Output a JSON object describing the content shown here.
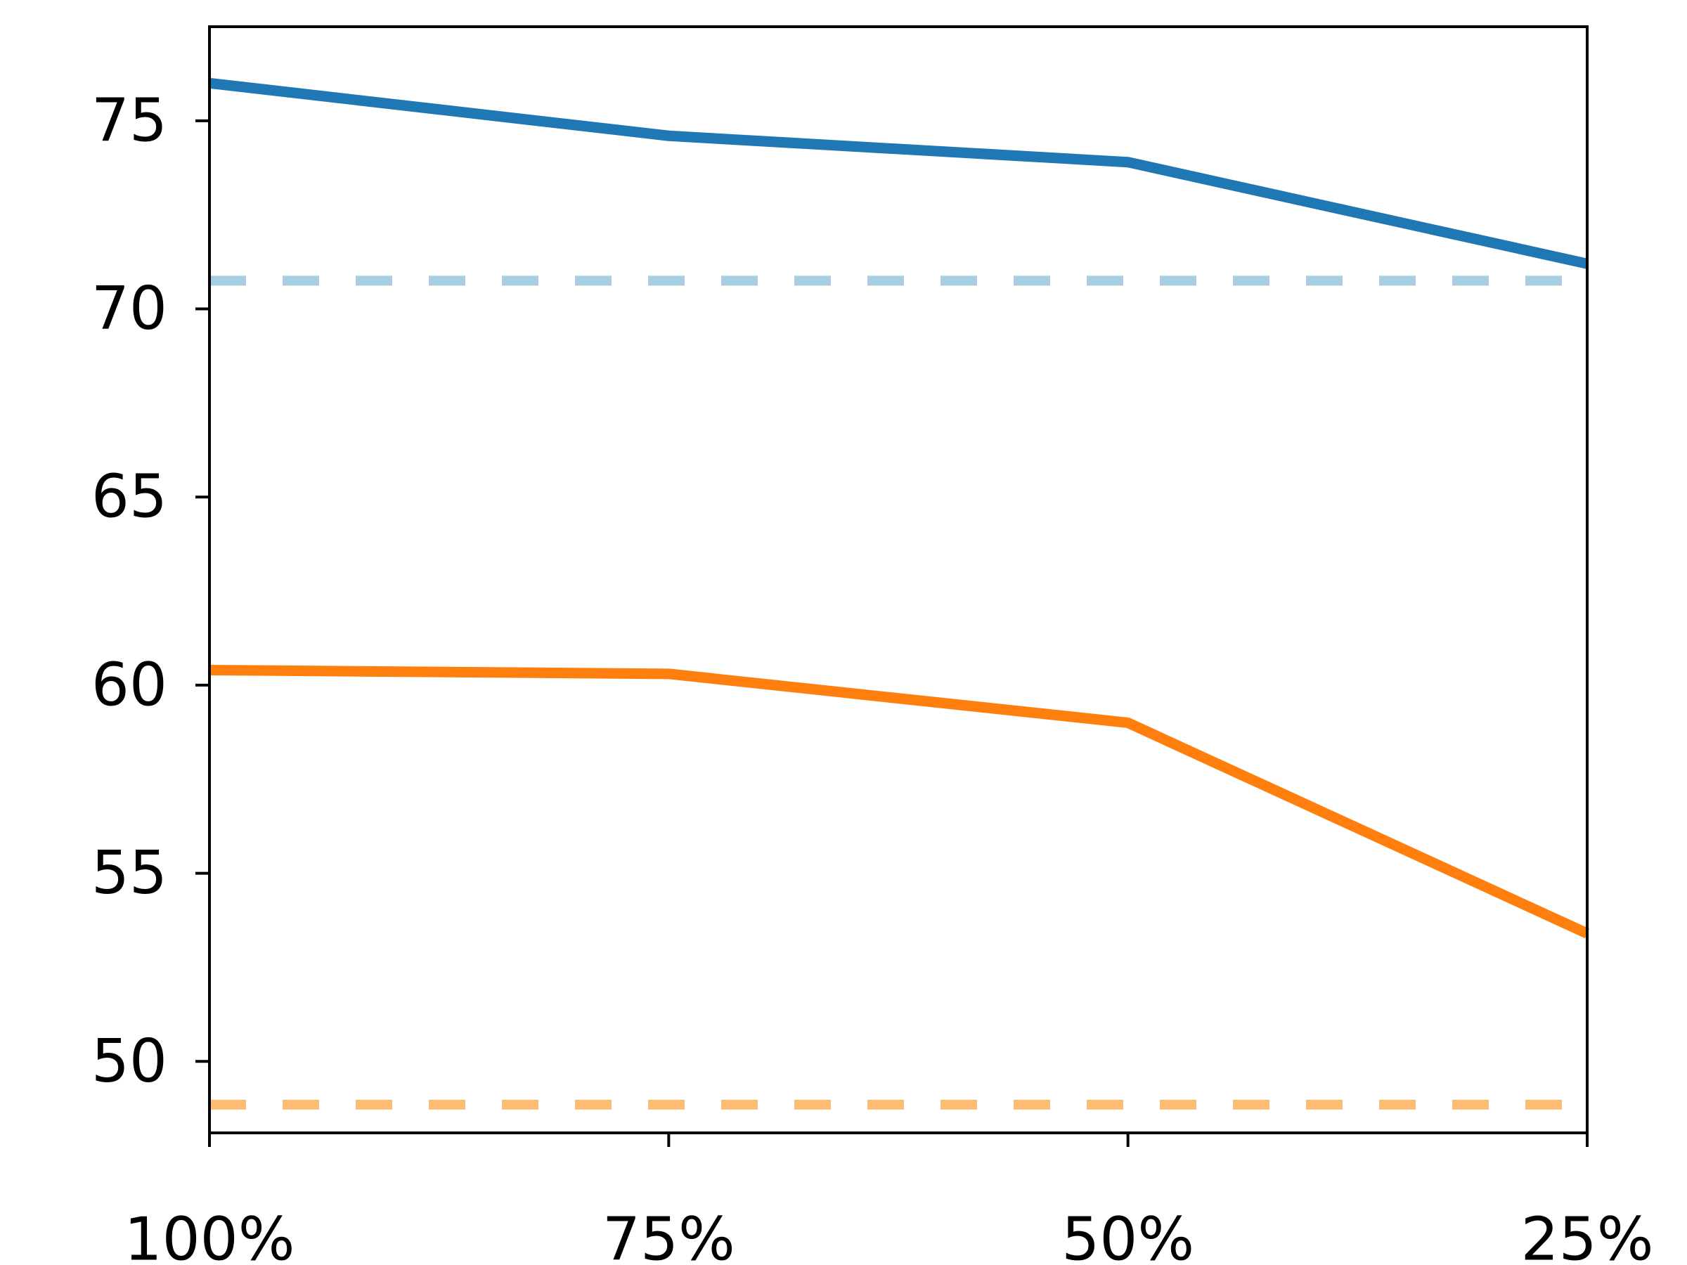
{
  "chart_data": {
    "type": "line",
    "title": "",
    "xlabel": "",
    "ylabel": "",
    "grid": false,
    "legend": null,
    "categories": [
      "100%",
      "75%",
      "50%",
      "25%"
    ],
    "series": [
      {
        "name": "blue-solid-series",
        "color": "#1f77b4",
        "line_style": "solid",
        "values": [
          76.0,
          74.6,
          73.9,
          71.2
        ]
      },
      {
        "name": "orange-solid-series",
        "color": "#ff7f0e",
        "line_style": "solid",
        "values": [
          60.4,
          60.3,
          59.0,
          53.4
        ]
      }
    ],
    "reference_lines": [
      {
        "name": "blue-dashed-baseline",
        "color": "#a6cee3",
        "line_style": "dashed",
        "value": 70.75
      },
      {
        "name": "orange-dashed-baseline",
        "color": "#fdbe74",
        "line_style": "dashed",
        "value": 48.85
      }
    ],
    "yticks": [
      50,
      55,
      60,
      65,
      70,
      75
    ],
    "ylim": [
      48.1,
      77.5
    ],
    "axis_color": "#000000"
  }
}
